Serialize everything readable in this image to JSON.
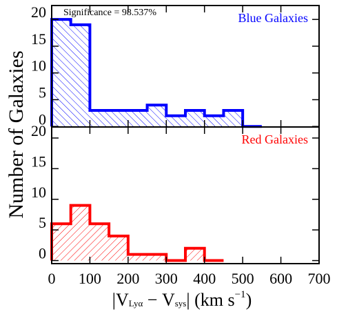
{
  "chart_data": [
    {
      "type": "histogram",
      "annotation": "Significance = 98.537%",
      "label": "Blue Galaxies",
      "color": "#0000ff",
      "hatch": "\\",
      "bins": [
        0,
        50,
        100,
        150,
        200,
        250,
        300,
        350,
        400,
        450,
        500,
        550
      ],
      "values": [
        20,
        19,
        3,
        3,
        3,
        4,
        2,
        3,
        2,
        3,
        0
      ],
      "xlim": [
        0,
        700
      ],
      "ylim": [
        -0.1,
        22.6
      ],
      "yticks": [
        0,
        5,
        10,
        15,
        20
      ],
      "ylabel": "Number of Galaxies"
    },
    {
      "type": "histogram",
      "label": "Red Galaxies",
      "color": "#ff0000",
      "hatch": "/",
      "bins": [
        0,
        50,
        100,
        150,
        200,
        250,
        300,
        350,
        400,
        450
      ],
      "values": [
        6,
        9,
        6,
        4,
        1,
        1,
        0,
        2,
        0
      ],
      "xlim": [
        0,
        700
      ],
      "ylim": [
        -0.5,
        21.8
      ],
      "yticks": [
        0,
        5,
        10,
        15,
        20
      ],
      "xticks": [
        0,
        100,
        200,
        300,
        400,
        500,
        600,
        700
      ],
      "xlabel": [
        "|V",
        "Lyα",
        " − V",
        "sys",
        "| (km s",
        "−1",
        ")"
      ]
    }
  ]
}
